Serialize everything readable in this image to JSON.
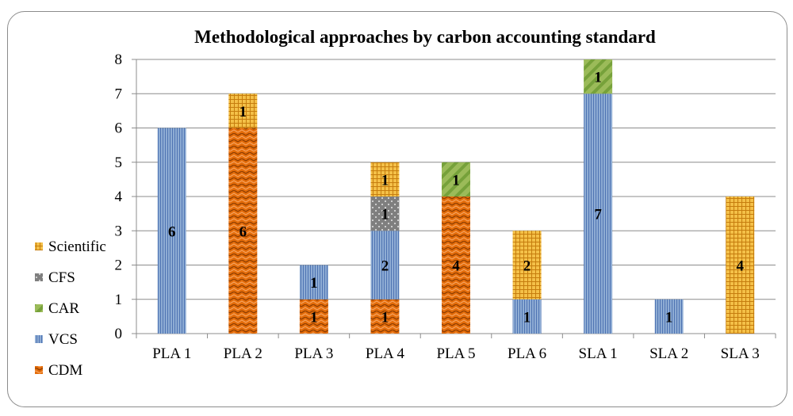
{
  "chart_data": {
    "type": "bar",
    "stacked": true,
    "title": "Methodological approaches by carbon accounting standard",
    "xlabel": "",
    "ylabel": "",
    "ylim": [
      0,
      8
    ],
    "yticks": [
      0,
      1,
      2,
      3,
      4,
      5,
      6,
      7,
      8
    ],
    "grid": true,
    "legend_position": "left",
    "categories": [
      "PLA 1",
      "PLA 2",
      "PLA 3",
      "PLA 4",
      "PLA 5",
      "PLA 6",
      "SLA 1",
      "SLA 2",
      "SLA 3"
    ],
    "series": [
      {
        "name": "CDM",
        "color": "#e36c0a",
        "pattern": "zigzag",
        "values": [
          0,
          6,
          1,
          1,
          4,
          0,
          0,
          0,
          0
        ]
      },
      {
        "name": "VCS",
        "color": "#95b3d7",
        "pattern": "vertical-lines",
        "values": [
          6,
          0,
          1,
          2,
          0,
          1,
          7,
          1,
          0
        ]
      },
      {
        "name": "CAR",
        "color": "#9bbb59",
        "pattern": "diagonal-stripes",
        "values": [
          0,
          0,
          0,
          0,
          1,
          0,
          1,
          0,
          0
        ]
      },
      {
        "name": "CFS",
        "color": "#7f7f7f",
        "pattern": "dots",
        "values": [
          0,
          0,
          0,
          1,
          0,
          0,
          0,
          0,
          0
        ]
      },
      {
        "name": "Scientific",
        "color": "#f4c048",
        "pattern": "grid",
        "values": [
          0,
          1,
          0,
          1,
          0,
          2,
          0,
          0,
          4
        ]
      }
    ],
    "legend_order": [
      "Scientific",
      "CFS",
      "CAR",
      "VCS",
      "CDM"
    ]
  }
}
